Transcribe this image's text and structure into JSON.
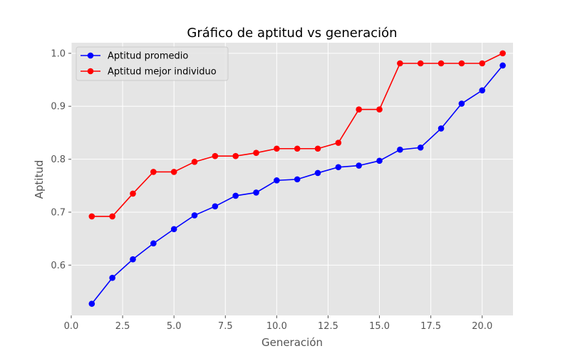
{
  "chart_data": {
    "type": "line",
    "title": "Gráfico de aptitud vs generación",
    "xlabel": "Generación",
    "ylabel": "Aptitud",
    "xlim": [
      0.0,
      21.5
    ],
    "ylim": [
      0.505,
      1.02
    ],
    "xticks": [
      0.0,
      2.5,
      5.0,
      7.5,
      10.0,
      12.5,
      15.0,
      17.5,
      20.0
    ],
    "xtick_labels": [
      "0.0",
      "2.5",
      "5.0",
      "7.5",
      "10.0",
      "12.5",
      "15.0",
      "17.5",
      "20.0"
    ],
    "yticks": [
      0.6,
      0.7,
      0.8,
      0.9,
      1.0
    ],
    "ytick_labels": [
      "0.6",
      "0.7",
      "0.8",
      "0.9",
      "1.0"
    ],
    "grid": true,
    "legend_position": "upper-left",
    "x": [
      1,
      2,
      3,
      4,
      5,
      6,
      7,
      8,
      9,
      10,
      11,
      12,
      13,
      14,
      15,
      16,
      17,
      18,
      19,
      20,
      21
    ],
    "series": [
      {
        "name": "Aptitud promedio",
        "color": "#0000ff",
        "values": [
          0.527,
          0.576,
          0.611,
          0.641,
          0.668,
          0.694,
          0.711,
          0.731,
          0.737,
          0.76,
          0.762,
          0.774,
          0.785,
          0.788,
          0.797,
          0.818,
          0.822,
          0.858,
          0.905,
          0.93,
          0.977
        ]
      },
      {
        "name": "Aptitud mejor individuo",
        "color": "#ff0000",
        "values": [
          0.692,
          0.692,
          0.735,
          0.776,
          0.776,
          0.795,
          0.806,
          0.806,
          0.812,
          0.82,
          0.82,
          0.82,
          0.831,
          0.894,
          0.894,
          0.981,
          0.981,
          0.981,
          0.981,
          0.981,
          1.0
        ]
      }
    ]
  }
}
